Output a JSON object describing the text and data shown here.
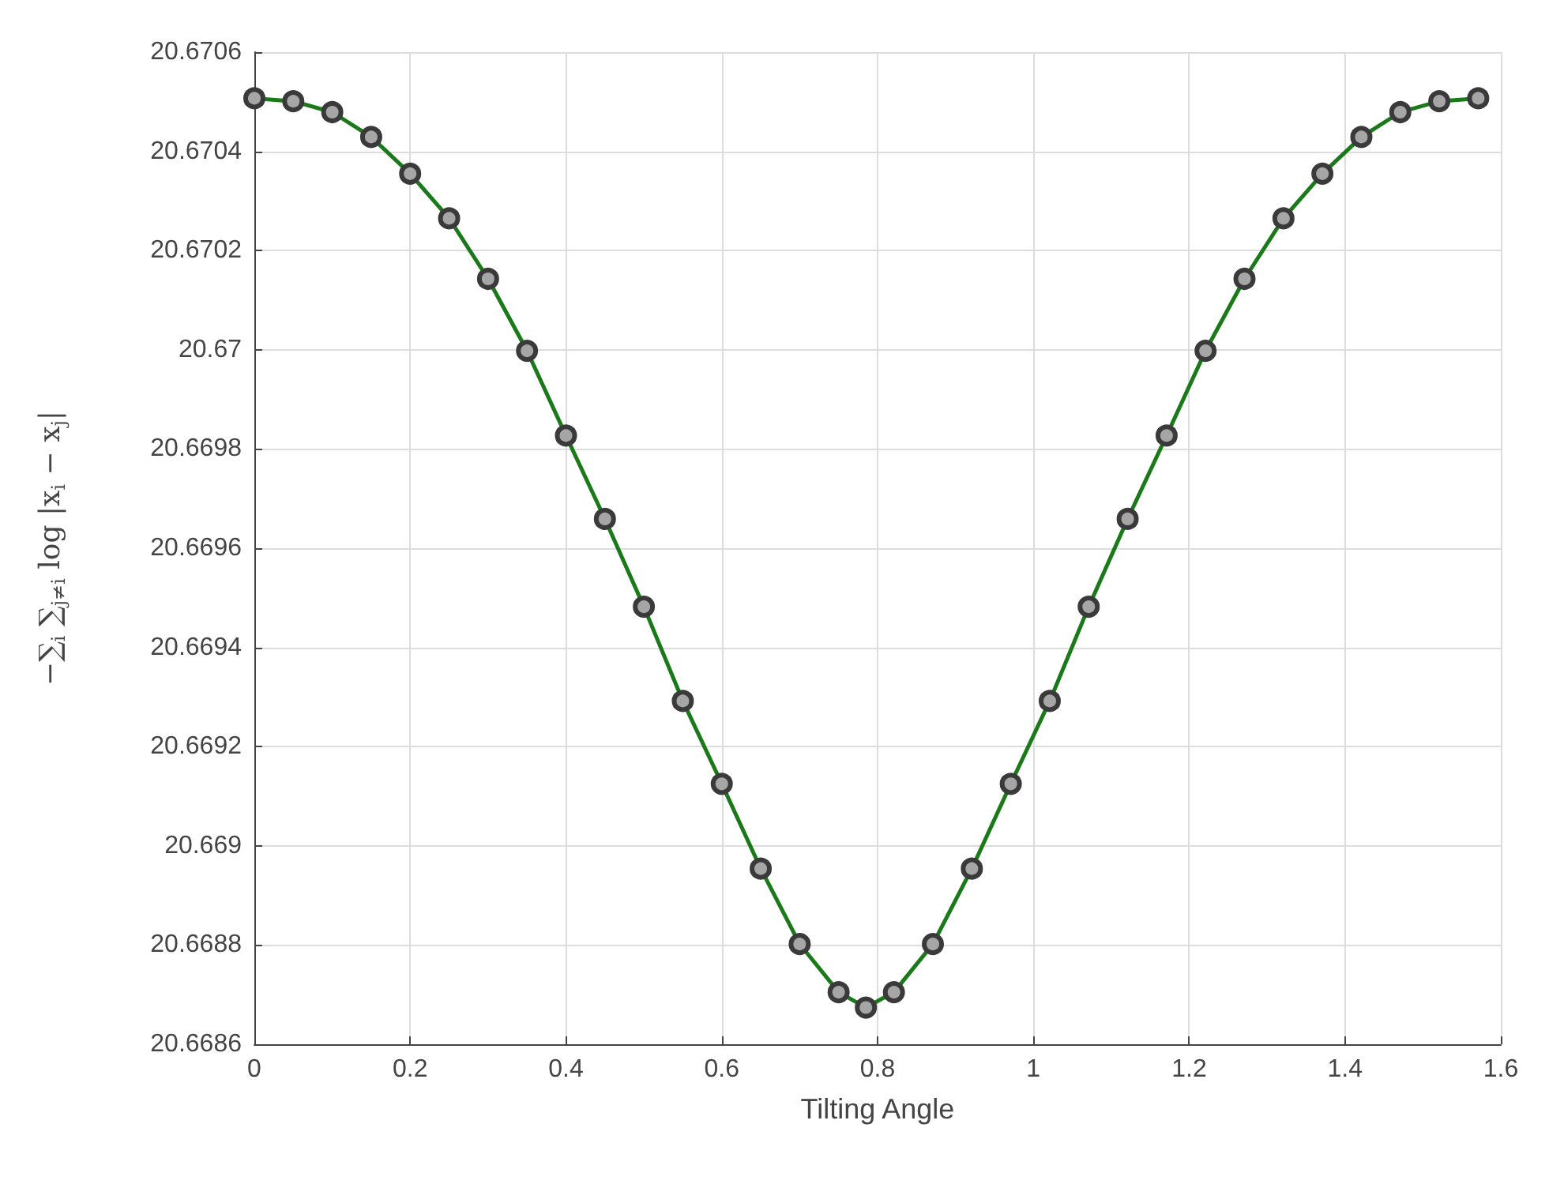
{
  "chart_data": {
    "type": "line",
    "xlabel": "Tilting Angle",
    "ylabel": "−∑$_{i}$ ∑$_{j≠i}$ log |x$_{i}$ − x$_{j}$|",
    "x": [
      0,
      0.05,
      0.1,
      0.15,
      0.2,
      0.25,
      0.3,
      0.35,
      0.4,
      0.45,
      0.5,
      0.55,
      0.6,
      0.65,
      0.7,
      0.75,
      0.785,
      0.821,
      0.871,
      0.921,
      0.971,
      1.021,
      1.071,
      1.121,
      1.171,
      1.221,
      1.271,
      1.321,
      1.371,
      1.421,
      1.471,
      1.521,
      1.571
    ],
    "series": [
      {
        "color": "#1a7a1a",
        "values": [
          20.670507,
          20.670501,
          20.670479,
          20.670429,
          20.670355,
          20.670265,
          20.670143,
          20.669998,
          20.669827,
          20.669659,
          20.669482,
          20.669292,
          20.669125,
          20.668954,
          20.668802,
          20.668705,
          20.668674,
          20.668705,
          20.668802,
          20.668954,
          20.669125,
          20.669292,
          20.669482,
          20.669659,
          20.669827,
          20.669998,
          20.670143,
          20.670265,
          20.670355,
          20.670429,
          20.670479,
          20.670501,
          20.670507
        ]
      }
    ],
    "xlim": [
      0,
      1.6
    ],
    "xticks": [
      0,
      0.2,
      0.4,
      0.6,
      0.8,
      1,
      1.2,
      1.4,
      1.6
    ],
    "ylim": [
      20.6686,
      20.6706
    ],
    "yticks": [
      20.6686,
      20.6688,
      20.669,
      20.6692,
      20.6694,
      20.6696,
      20.6698,
      20.67,
      20.6702,
      20.6704,
      20.6706
    ],
    "grid": true,
    "marker": "circle",
    "line_style": "solid"
  }
}
